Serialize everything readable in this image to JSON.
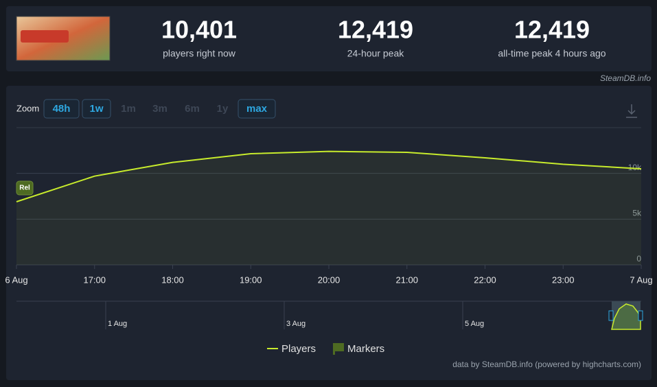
{
  "stats": [
    {
      "value": "10,401",
      "label": "players right now"
    },
    {
      "value": "12,419",
      "label": "24-hour peak"
    },
    {
      "value": "12,419",
      "label": "all-time peak 4 hours ago"
    }
  ],
  "source": "SteamDB.info",
  "chart_data": {
    "type": "line",
    "zoom_label": "Zoom",
    "zoom_buttons": [
      "48h",
      "1w",
      "1m",
      "3m",
      "6m",
      "1y",
      "max"
    ],
    "zoom_active": [
      "48h",
      "1w",
      "max"
    ],
    "categories": [
      "6 Aug",
      "17:00",
      "18:00",
      "19:00",
      "20:00",
      "21:00",
      "22:00",
      "23:00",
      "7 Aug"
    ],
    "series": [
      {
        "name": "Players",
        "color": "#c8ec2c",
        "values": [
          6900,
          9700,
          11200,
          12150,
          12400,
          12300,
          11700,
          11000,
          10500
        ]
      }
    ],
    "markers_legend": {
      "name": "Markers",
      "color": "#4e6b22"
    },
    "flags": [
      {
        "x": "6 Aug",
        "text": "Rel"
      }
    ],
    "ylim": [
      0,
      15000
    ],
    "yticks": [
      0,
      {
        "value": 5000,
        "label": "5k"
      },
      {
        "value": 10000,
        "label": "10k"
      }
    ],
    "grid": true,
    "navigator_labels": [
      "1 Aug",
      "3 Aug",
      "5 Aug"
    ],
    "credits": "data by SteamDB.info (powered by highcharts.com)"
  }
}
